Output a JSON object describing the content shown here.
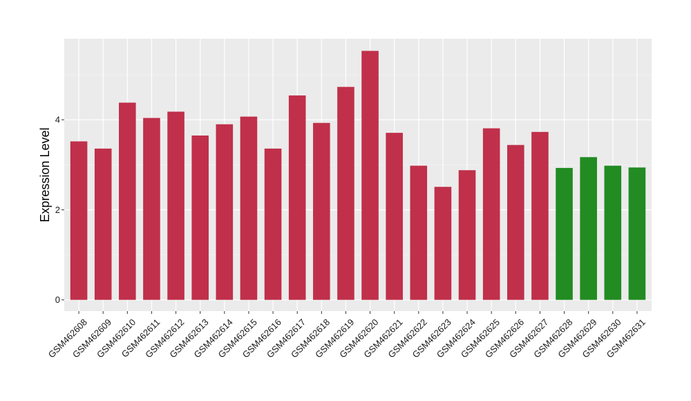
{
  "chart_data": {
    "type": "bar",
    "title": "",
    "xlabel": "",
    "ylabel": "Expression Level",
    "ylim": [
      -0.25,
      5.8
    ],
    "yticks": [
      0,
      2,
      4
    ],
    "grid": true,
    "categories": [
      "GSM462608",
      "GSM462609",
      "GSM462610",
      "GSM462611",
      "GSM462612",
      "GSM462613",
      "GSM462614",
      "GSM462615",
      "GSM462616",
      "GSM462617",
      "GSM462618",
      "GSM462619",
      "GSM462620",
      "GSM462621",
      "GSM462622",
      "GSM462623",
      "GSM462624",
      "GSM462625",
      "GSM462626",
      "GSM462627",
      "GSM462628",
      "GSM462629",
      "GSM462630",
      "GSM462631"
    ],
    "values": [
      3.52,
      3.36,
      4.38,
      4.04,
      4.18,
      3.65,
      3.9,
      4.07,
      3.36,
      4.54,
      3.93,
      4.73,
      5.53,
      3.71,
      2.98,
      2.51,
      2.88,
      3.81,
      3.44,
      3.73,
      2.93,
      3.17,
      2.98,
      2.94
    ],
    "bar_colors": [
      "#C0304A",
      "#C0304A",
      "#C0304A",
      "#C0304A",
      "#C0304A",
      "#C0304A",
      "#C0304A",
      "#C0304A",
      "#C0304A",
      "#C0304A",
      "#C0304A",
      "#C0304A",
      "#C0304A",
      "#C0304A",
      "#C0304A",
      "#C0304A",
      "#C0304A",
      "#C0304A",
      "#C0304A",
      "#C0304A",
      "#228B22",
      "#228B22",
      "#228B22",
      "#228B22"
    ],
    "colors": {
      "panel": "#EBEBEB",
      "grid_major": "#FFFFFF",
      "grid_minor": "#F3F3F3",
      "tick": "#333333"
    }
  }
}
